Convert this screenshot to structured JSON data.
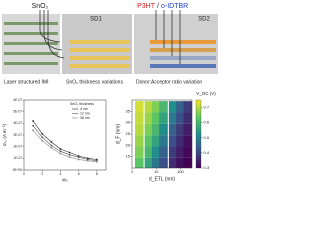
{
  "schematic": {
    "left_label": "SnO₂",
    "sd1": "SD1",
    "donor": "P3HT",
    "slash": "/",
    "acceptor": "o-IDTBR",
    "sd2": "SD2",
    "captions": [
      "Laser structured IMI",
      "SnO₂ thickness variations",
      "Donor:Acceptor ratio variation"
    ]
  },
  "chart_data": [
    {
      "type": "line",
      "xlabel": "wₛ",
      "ylabel": "σₛ꜀ (A m⁻²)",
      "x": [
        1,
        2,
        3,
        4,
        5,
        6,
        7,
        8
      ],
      "xlim": [
        0,
        9
      ],
      "xticks": [
        0,
        2,
        4,
        6,
        8
      ],
      "ylim": [
        0,
        6e-07
      ],
      "yticks": [
        {
          "value": 0,
          "label": "0E+00"
        },
        {
          "value": 1e-07,
          "label": "1E-07"
        },
        {
          "value": 2e-07,
          "label": "2E-07"
        },
        {
          "value": 3e-07,
          "label": "3E-07"
        },
        {
          "value": 4e-07,
          "label": "4E-07"
        },
        {
          "value": 5e-07,
          "label": "5E-07"
        },
        {
          "value": 6e-07,
          "label": "6E-07"
        }
      ],
      "legend_title": "SnO₂ thickness",
      "series": [
        {
          "name": "4 nm",
          "color": "#222222",
          "values": [
            4.2e-07,
            3.1e-07,
            2.4e-07,
            1.8e-07,
            1.5e-07,
            1.2e-07,
            1e-07,
            9e-08
          ]
        },
        {
          "name": "12 nm",
          "color": "#555555",
          "values": [
            3.8e-07,
            2.8e-07,
            2.1e-07,
            1.6e-07,
            1.3e-07,
            1.1e-07,
            9e-08,
            8e-08
          ]
        },
        {
          "name": "36 nm",
          "color": "#888888",
          "values": [
            3.4e-07,
            2.5e-07,
            1.9e-07,
            1.4e-07,
            1.1e-07,
            9e-08,
            8e-08,
            7e-08
          ]
        }
      ]
    },
    {
      "type": "heatmap",
      "title": "V_OC (V)",
      "xlabel": "d_ETL (nm)",
      "ylabel": "d_F (nm)",
      "x": [
        2,
        5,
        10,
        20,
        50,
        100,
        200
      ],
      "y": [
        12,
        17,
        22,
        27,
        32,
        37
      ],
      "xlim": [
        1,
        300
      ],
      "xlog": true,
      "xticks": [
        1,
        10,
        100
      ],
      "ylim": [
        10,
        40
      ],
      "yticks": [
        15,
        20,
        25,
        30,
        35
      ],
      "zlim": [
        0.3,
        0.75
      ],
      "zticks": [
        0.3,
        0.4,
        0.5,
        0.6,
        0.7
      ],
      "colormap": [
        "#440154",
        "#3b528b",
        "#21918c",
        "#5ec962",
        "#fde725"
      ],
      "values": [
        [
          0.63,
          0.56,
          0.48,
          0.41,
          0.36,
          0.32,
          0.3
        ],
        [
          0.66,
          0.6,
          0.52,
          0.44,
          0.38,
          0.34,
          0.31
        ],
        [
          0.68,
          0.63,
          0.56,
          0.48,
          0.41,
          0.36,
          0.32
        ],
        [
          0.7,
          0.66,
          0.6,
          0.52,
          0.44,
          0.38,
          0.34
        ],
        [
          0.71,
          0.68,
          0.63,
          0.56,
          0.48,
          0.41,
          0.36
        ],
        [
          0.72,
          0.7,
          0.66,
          0.6,
          0.52,
          0.44,
          0.38
        ]
      ]
    }
  ]
}
